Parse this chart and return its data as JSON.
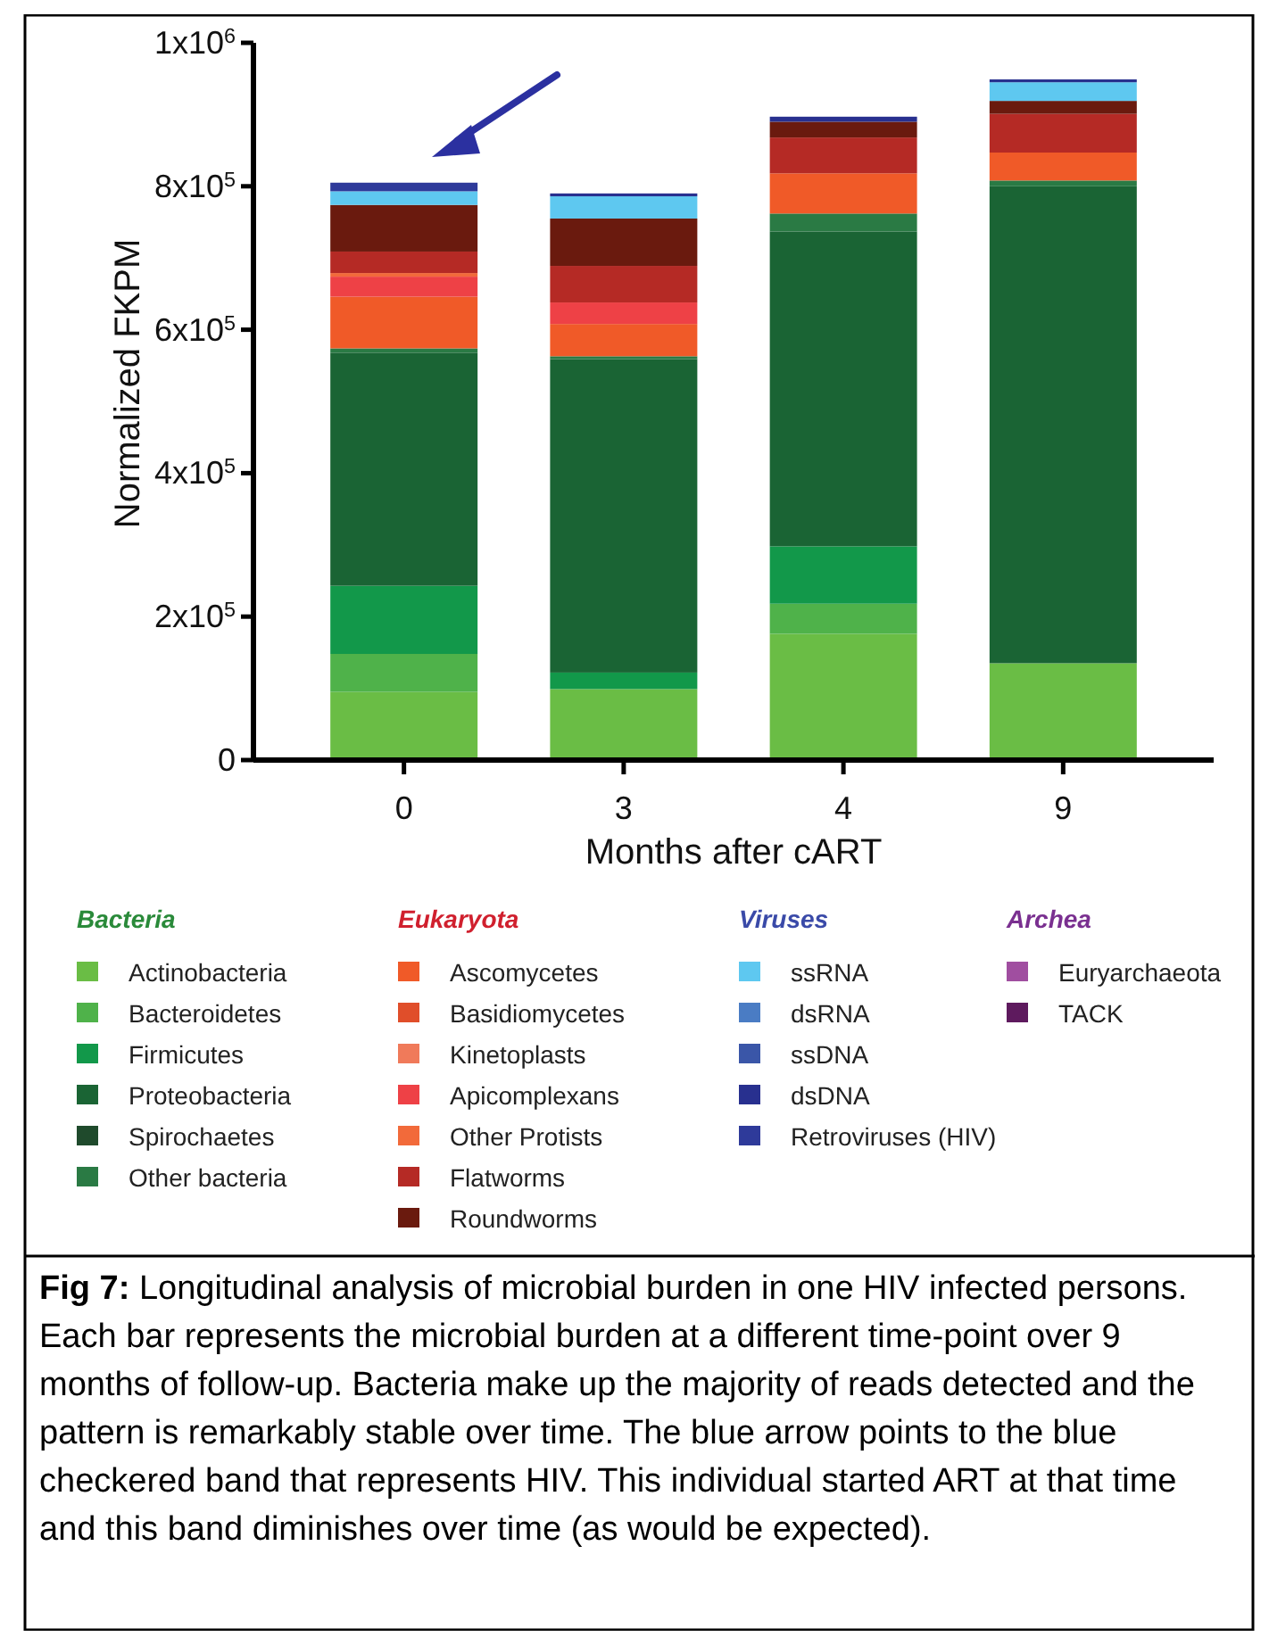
{
  "chart_data": {
    "type": "bar",
    "stacked": true,
    "xlabel": "Months after cART",
    "ylabel": "Normalized FKPM",
    "categories": [
      "0",
      "3",
      "4",
      "9"
    ],
    "ylim": [
      0,
      1000000
    ],
    "yticks": [
      {
        "value": 0,
        "label": "0"
      },
      {
        "value": 200000,
        "label": "2x10$^{5}$"
      },
      {
        "value": 400000,
        "label": "4x10$^{5}$"
      },
      {
        "value": 600000,
        "label": "6x10$^{5}$"
      },
      {
        "value": 800000,
        "label": "8x10$^{5}$"
      },
      {
        "value": 1000000,
        "label": "1x10$^{6}$"
      }
    ],
    "grid": false,
    "legend": "bottom",
    "series": [
      {
        "name": "Actinobacteria",
        "color": "#6abd45",
        "values": [
          95000,
          99000,
          176000,
          135000
        ]
      },
      {
        "name": "Bacteroidetes",
        "color": "#4fb24a",
        "values": [
          53000,
          0,
          42000,
          0
        ]
      },
      {
        "name": "Firmicutes",
        "color": "#12984a",
        "values": [
          95000,
          23000,
          80000,
          0
        ]
      },
      {
        "name": "Proteobacteria",
        "color": "#1a6434",
        "values": [
          325000,
          437000,
          439000,
          665000
        ]
      },
      {
        "name": "Spirochaetes",
        "color": "#1f4a2c",
        "values": [
          0,
          0,
          0,
          0
        ]
      },
      {
        "name": "Other bacteria",
        "color": "#2a7a44",
        "values": [
          6000,
          4000,
          25000,
          8000
        ]
      },
      {
        "name": "Ascomycetes",
        "color": "#f05a28",
        "values": [
          72000,
          45000,
          56000,
          39000
        ]
      },
      {
        "name": "Basidiomycetes",
        "color": "#e04e2a",
        "values": [
          0,
          0,
          0,
          0
        ]
      },
      {
        "name": "Kinetoplasts",
        "color": "#f07a5a",
        "values": [
          0,
          0,
          0,
          0
        ]
      },
      {
        "name": "Apicomplexans",
        "color": "#ee4146",
        "values": [
          28000,
          30000,
          0,
          0
        ]
      },
      {
        "name": "Other Protists",
        "color": "#f26a3a",
        "values": [
          5000,
          0,
          0,
          0
        ]
      },
      {
        "name": "Flatworms",
        "color": "#b52a25",
        "values": [
          30000,
          51000,
          50000,
          54000
        ]
      },
      {
        "name": "Roundworms",
        "color": "#6a1a0e",
        "values": [
          65000,
          66000,
          22000,
          18000
        ]
      },
      {
        "name": "ssRNA",
        "color": "#5ec8f0",
        "values": [
          19000,
          31000,
          0,
          26000
        ]
      },
      {
        "name": "dsRNA",
        "color": "#4a7cc4",
        "values": [
          0,
          0,
          0,
          0
        ]
      },
      {
        "name": "ssDNA",
        "color": "#3a56a8",
        "values": [
          0,
          0,
          0,
          0
        ]
      },
      {
        "name": "dsDNA",
        "color": "#28308f",
        "values": [
          0,
          4000,
          7000,
          4000
        ]
      },
      {
        "name": "Retroviruses (HIV)",
        "color": "#2e3a9a",
        "values": [
          12000,
          0,
          0,
          0
        ]
      },
      {
        "name": "Euryarchaeota",
        "color": "#a04ea0",
        "values": [
          0,
          0,
          0,
          0
        ]
      },
      {
        "name": "TACK",
        "color": "#5e1a5e",
        "values": [
          0,
          0,
          0,
          0
        ]
      }
    ],
    "annotations": [
      "Bacteria",
      "Eukaryota",
      "Viruses",
      "Archea",
      "Fig 7:",
      "Longitudinal analysis of microbial burden in one HIV infected persons. Each bar represents the microbial burden at a different time-point over 9 months of follow-up. Bacteria make up the majority of reads detected and the pattern is remarkably stable over time. The blue arrow points to the blue checkered band that represents HIV. This individual started ART at that time and this band diminishes over time (as would be expected)."
    ]
  }
}
